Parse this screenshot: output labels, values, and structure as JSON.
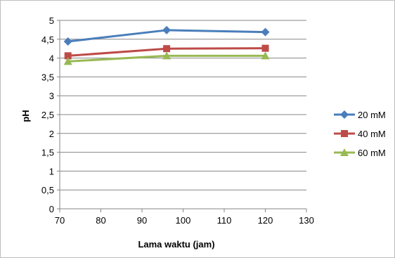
{
  "chart_data": {
    "type": "line",
    "xlabel": "Lama waktu (jam)",
    "ylabel": "pH",
    "xlim": [
      70,
      130
    ],
    "ylim": [
      0,
      5
    ],
    "x_ticks": [
      "70",
      "80",
      "90",
      "100",
      "110",
      "120",
      "130"
    ],
    "y_ticks": [
      "0",
      "0,5",
      "1",
      "1,5",
      "2",
      "2,5",
      "3",
      "3,5",
      "4",
      "4,5",
      "5"
    ],
    "grid": "horizontal",
    "legend_position": "right",
    "series": [
      {
        "name": "20 mM",
        "color": "#4a7ebb",
        "marker": "diamond",
        "x": [
          72,
          96,
          120
        ],
        "y": [
          4.44,
          4.74,
          4.69
        ]
      },
      {
        "name": "40 mM",
        "color": "#be4b48",
        "marker": "square",
        "x": [
          72,
          96,
          120
        ],
        "y": [
          4.06,
          4.25,
          4.26
        ]
      },
      {
        "name": "60 mM",
        "color": "#98b954",
        "marker": "triangle",
        "x": [
          72,
          96,
          120
        ],
        "y": [
          3.91,
          4.06,
          4.06
        ]
      }
    ]
  }
}
